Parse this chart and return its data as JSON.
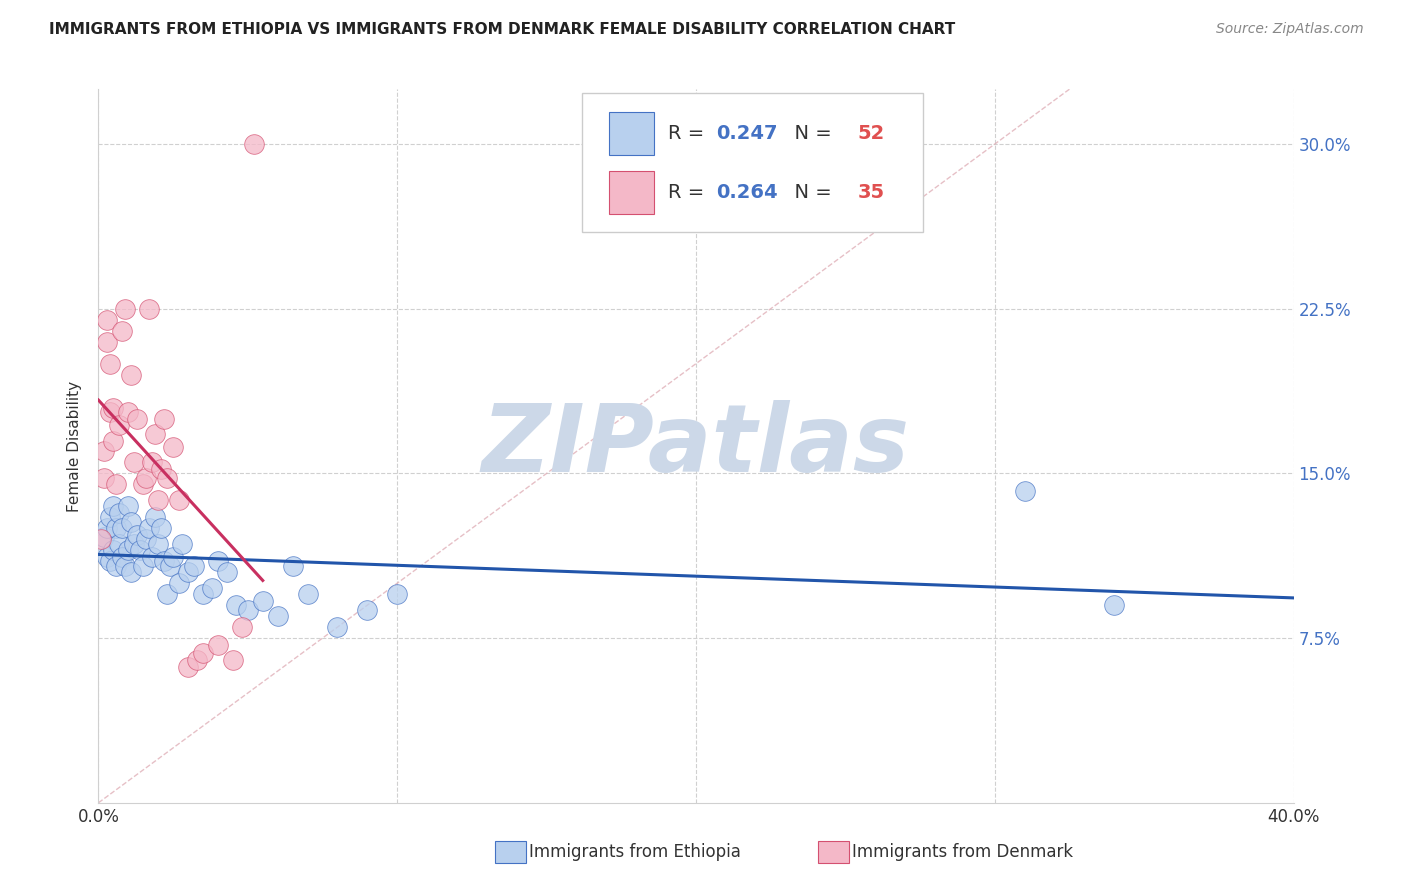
{
  "title": "IMMIGRANTS FROM ETHIOPIA VS IMMIGRANTS FROM DENMARK FEMALE DISABILITY CORRELATION CHART",
  "source": "Source: ZipAtlas.com",
  "ylabel": "Female Disability",
  "xlim": [
    0.0,
    0.4
  ],
  "ylim": [
    0.0,
    0.325
  ],
  "yticks": [
    0.075,
    0.15,
    0.225,
    0.3
  ],
  "ytick_labels": [
    "7.5%",
    "15.0%",
    "22.5%",
    "30.0%"
  ],
  "xticks": [
    0.0,
    0.1,
    0.2,
    0.3,
    0.4
  ],
  "xtick_labels_show": [
    "0.0%",
    "",
    "",
    "",
    "40.0%"
  ],
  "background_color": "#ffffff",
  "grid_color": "#d0d0d0",
  "ethiopia_fill": "#b8d0ee",
  "ethiopia_edge": "#4472c4",
  "denmark_fill": "#f4b8c8",
  "denmark_edge": "#d45070",
  "diagonal_color": "#e0b0b8",
  "ethiopia_line_color": "#2255aa",
  "denmark_line_color": "#c83060",
  "r_color": "#4472c4",
  "n_color": "#e05050",
  "watermark_text": "ZIPatlas",
  "watermark_color": "#ccd8e8",
  "legend_r1": "0.247",
  "legend_n1": "52",
  "legend_r2": "0.264",
  "legend_n2": "35",
  "ethiopia_x": [
    0.001,
    0.002,
    0.003,
    0.003,
    0.004,
    0.004,
    0.005,
    0.005,
    0.006,
    0.006,
    0.007,
    0.007,
    0.008,
    0.008,
    0.009,
    0.01,
    0.01,
    0.011,
    0.011,
    0.012,
    0.013,
    0.014,
    0.015,
    0.016,
    0.017,
    0.018,
    0.019,
    0.02,
    0.021,
    0.022,
    0.023,
    0.024,
    0.025,
    0.027,
    0.028,
    0.03,
    0.032,
    0.035,
    0.038,
    0.04,
    0.043,
    0.046,
    0.05,
    0.055,
    0.06,
    0.065,
    0.07,
    0.08,
    0.09,
    0.1,
    0.31,
    0.34
  ],
  "ethiopia_y": [
    0.118,
    0.121,
    0.125,
    0.112,
    0.13,
    0.11,
    0.135,
    0.115,
    0.125,
    0.108,
    0.132,
    0.118,
    0.125,
    0.112,
    0.108,
    0.135,
    0.115,
    0.128,
    0.105,
    0.118,
    0.122,
    0.115,
    0.108,
    0.12,
    0.125,
    0.112,
    0.13,
    0.118,
    0.125,
    0.11,
    0.095,
    0.108,
    0.112,
    0.1,
    0.118,
    0.105,
    0.108,
    0.095,
    0.098,
    0.11,
    0.105,
    0.09,
    0.088,
    0.092,
    0.085,
    0.108,
    0.095,
    0.08,
    0.088,
    0.095,
    0.142,
    0.09
  ],
  "denmark_x": [
    0.001,
    0.002,
    0.002,
    0.003,
    0.003,
    0.004,
    0.004,
    0.005,
    0.005,
    0.006,
    0.007,
    0.008,
    0.009,
    0.01,
    0.011,
    0.012,
    0.013,
    0.015,
    0.016,
    0.017,
    0.018,
    0.019,
    0.02,
    0.021,
    0.022,
    0.023,
    0.025,
    0.027,
    0.03,
    0.033,
    0.035,
    0.04,
    0.045,
    0.048,
    0.052
  ],
  "denmark_y": [
    0.12,
    0.16,
    0.148,
    0.22,
    0.21,
    0.2,
    0.178,
    0.165,
    0.18,
    0.145,
    0.172,
    0.215,
    0.225,
    0.178,
    0.195,
    0.155,
    0.175,
    0.145,
    0.148,
    0.225,
    0.155,
    0.168,
    0.138,
    0.152,
    0.175,
    0.148,
    0.162,
    0.138,
    0.062,
    0.065,
    0.068,
    0.072,
    0.065,
    0.08,
    0.3
  ]
}
